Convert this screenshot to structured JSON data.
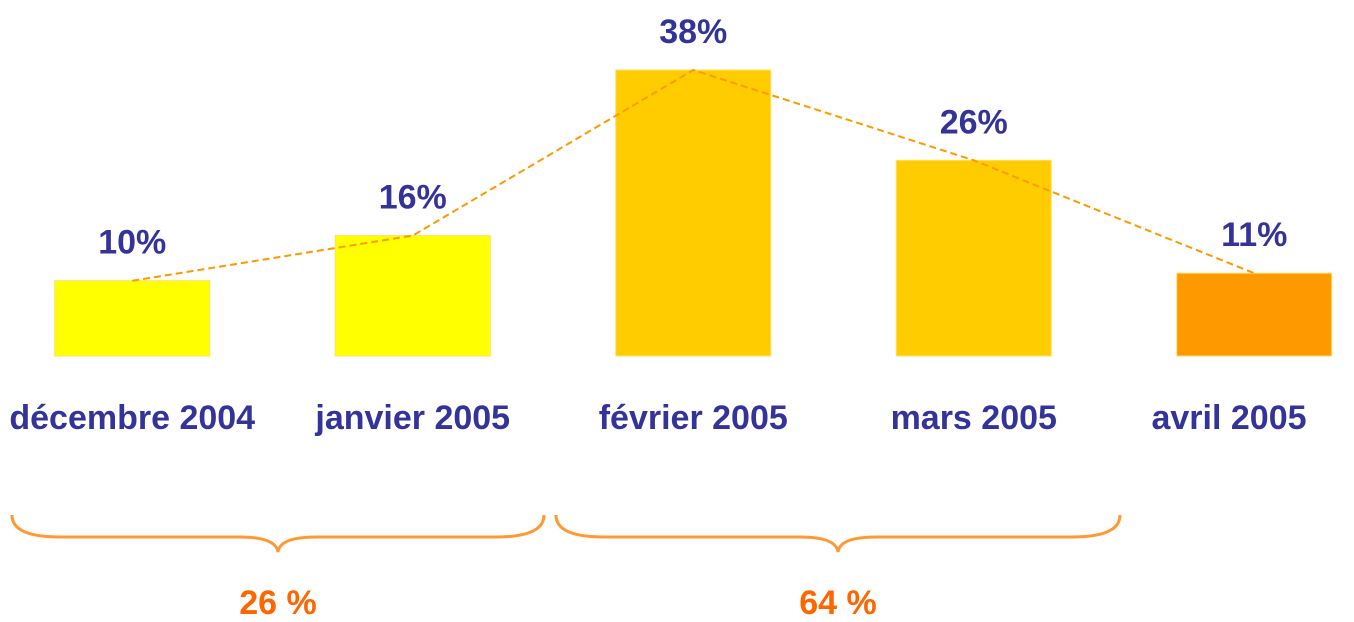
{
  "chart_data": {
    "type": "bar",
    "categories": [
      "décembre 2004",
      "janvier 2005",
      "février 2005",
      "mars 2005",
      "avril 2005"
    ],
    "values": [
      10,
      16,
      38,
      26,
      11
    ],
    "value_labels": [
      "10%",
      "16%",
      "38%",
      "26%",
      "11%"
    ],
    "colors": [
      "#ffff00",
      "#ffff00",
      "#ffcc00",
      "#ffcc00",
      "#ff9900"
    ],
    "trend_line": {
      "color": "#ff9900",
      "dashed": true
    },
    "annotations": [
      "26 %",
      "64 %"
    ]
  }
}
